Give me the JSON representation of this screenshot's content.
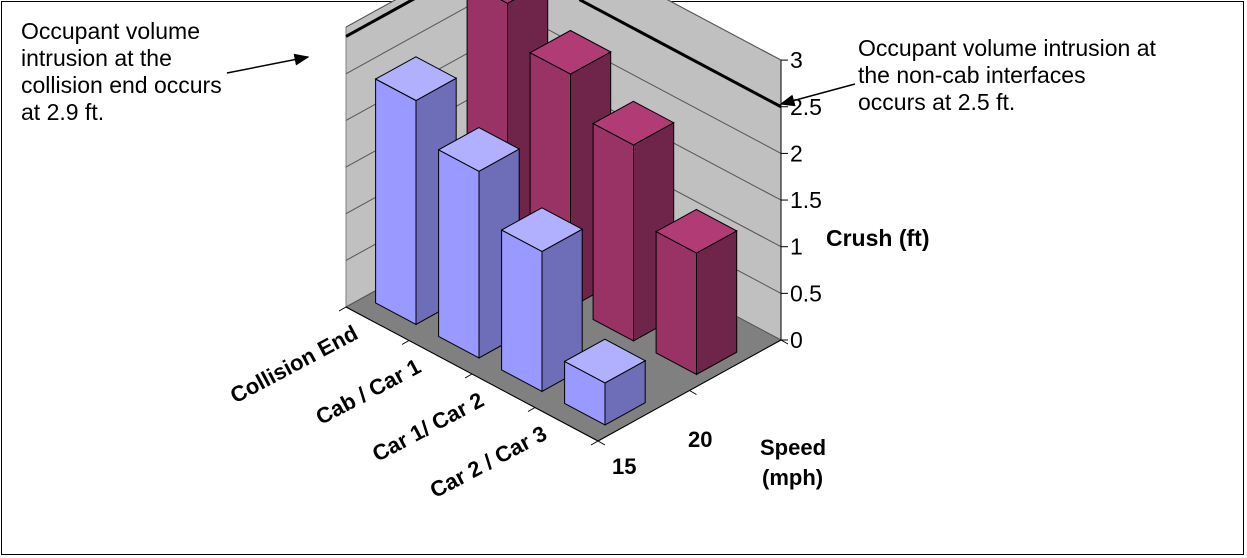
{
  "chart_data": {
    "type": "bar",
    "style": "3d-clustered-bar",
    "categories": [
      "Collision End",
      "Cab / Car 1",
      "Car 1/ Car 2",
      "Car 2 / Car 3"
    ],
    "series": [
      {
        "name": "15",
        "color": "#9999FF",
        "values": [
          2.4,
          2.0,
          1.5,
          0.45
        ]
      },
      {
        "name": "20",
        "color": "#993366",
        "values": [
          2.9,
          2.5,
          2.1,
          1.3
        ]
      }
    ],
    "ylabel": "Crush (ft)",
    "zlabel": [
      "Speed",
      "(mph)"
    ],
    "ylim": [
      0,
      3
    ],
    "yticks": [
      "0",
      "0.5",
      "1",
      "1.5",
      "2",
      "2.5",
      "3"
    ],
    "gridlines": true,
    "threshold_lines": [
      {
        "value": 2.9,
        "label": "collision end"
      },
      {
        "value": 2.5,
        "label": "non-cab interfaces"
      }
    ],
    "annotations": {
      "left": [
        "Occupant volume",
        "intrusion at the",
        "collision end occurs",
        "at 2.9 ft."
      ],
      "right": [
        "Occupant volume intrusion at",
        "the non-cab interfaces",
        "occurs at 2.5 ft."
      ]
    }
  }
}
